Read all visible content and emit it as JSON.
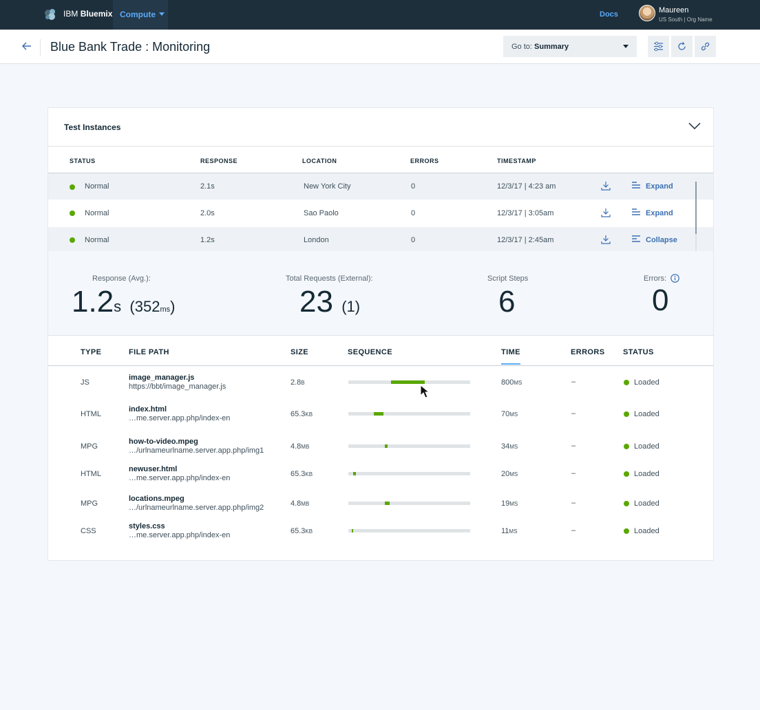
{
  "topbar": {
    "brand_light": "IBM",
    "brand_bold": "Bluemix",
    "compute_label": "Compute",
    "docs_label": "Docs",
    "user_name": "Maureen",
    "user_org": "US South | Org Name"
  },
  "subheader": {
    "title": "Blue Bank Trade : Monitoring",
    "goto_prefix": "Go to:",
    "goto_value": "Summary"
  },
  "card": {
    "title": "Test Instances"
  },
  "instances": {
    "headers": [
      "STATUS",
      "RESPONSE",
      "LOCATION",
      "ERRORS",
      "TIMESTAMP"
    ],
    "rows": [
      {
        "status": "Normal",
        "response": "2.1s",
        "location": "New York City",
        "errors": "0",
        "timestamp": "12/3/17 | 4:23 am",
        "action": "Expand"
      },
      {
        "status": "Normal",
        "response": "2.0s",
        "location": "Sao Paolo",
        "errors": "0",
        "timestamp": "12/3/17 | 3:05am",
        "action": "Expand"
      },
      {
        "status": "Normal",
        "response": "1.2s",
        "location": "London",
        "errors": "0",
        "timestamp": "12/3/17 | 2:45am",
        "action": "Collapse"
      }
    ]
  },
  "summary": {
    "response_label": "Response (Avg.):",
    "response_value": "1.2",
    "response_unit": "s",
    "response_sub_open": "(352",
    "response_sub_unit": "ms",
    "response_sub_close": ")",
    "requests_label": "Total Requests (External):",
    "requests_value": "23",
    "requests_sub": "(1)",
    "steps_label": "Script Steps",
    "steps_value": "6",
    "errors_label": "Errors:",
    "errors_value": "0"
  },
  "files": {
    "headers": [
      "TYPE",
      "FILE PATH",
      "SIZE",
      "SEQUENCE",
      "TIME",
      "ERRORS",
      "STATUS"
    ],
    "rows": [
      {
        "type": "JS",
        "name": "image_manager.js",
        "path": "https://bbt/image_manager.js",
        "size": "2.8",
        "size_unit": "B",
        "seq_start": 0.35,
        "seq_end": 0.63,
        "time": "800",
        "time_unit": "MS",
        "errors": "–",
        "status": "Loaded"
      },
      {
        "type": "HTML",
        "name": "index.html",
        "path": "…me.server.app.php/index-en",
        "size": "65.3",
        "size_unit": "KB",
        "seq_start": 0.21,
        "seq_end": 0.29,
        "time": "70",
        "time_unit": "MS",
        "errors": "–",
        "status": "Loaded"
      },
      {
        "type": "MPG",
        "name": "how-to-video.mpeg",
        "path": "…/urlnameurlname.server.app.php/img1",
        "size": "4.8",
        "size_unit": "MB",
        "seq_start": 0.3,
        "seq_end": 0.32,
        "time": "34",
        "time_unit": "MS",
        "errors": "–",
        "status": "Loaded"
      },
      {
        "type": "HTML",
        "name": "newuser.html",
        "path": "…me.server.app.php/index-en",
        "size": "65.3",
        "size_unit": "KB",
        "seq_start": 0.04,
        "seq_end": 0.06,
        "time": "20",
        "time_unit": "MS",
        "errors": "–",
        "status": "Loaded"
      },
      {
        "type": "MPG",
        "name": "locations.mpeg",
        "path": "…/urlnameurlname.server.app.php/img2",
        "size": "4.8",
        "size_unit": "MB",
        "seq_start": 0.3,
        "seq_end": 0.34,
        "time": "19",
        "time_unit": "MS",
        "errors": "–",
        "status": "Loaded"
      },
      {
        "type": "CSS",
        "name": "styles.css",
        "path": "…me.server.app.php/index-en",
        "size": "65.3",
        "size_unit": "KB",
        "seq_start": 0.03,
        "seq_end": 0.04,
        "time": "11",
        "time_unit": "MS",
        "errors": "–",
        "status": "Loaded"
      }
    ]
  },
  "colors": {
    "accent": "#5aaafa",
    "link": "#3d70b2",
    "success": "#5aa700",
    "nav_bg": "#1d2f3b"
  },
  "icons": [
    "ibm-cloud-logo-icon",
    "caret-down-icon",
    "avatar",
    "back-arrow-icon",
    "sliders-icon",
    "refresh-icon",
    "link-icon",
    "chevron-down-icon",
    "download-icon",
    "expand-list-icon",
    "info-icon",
    "mouse-cursor-icon"
  ]
}
